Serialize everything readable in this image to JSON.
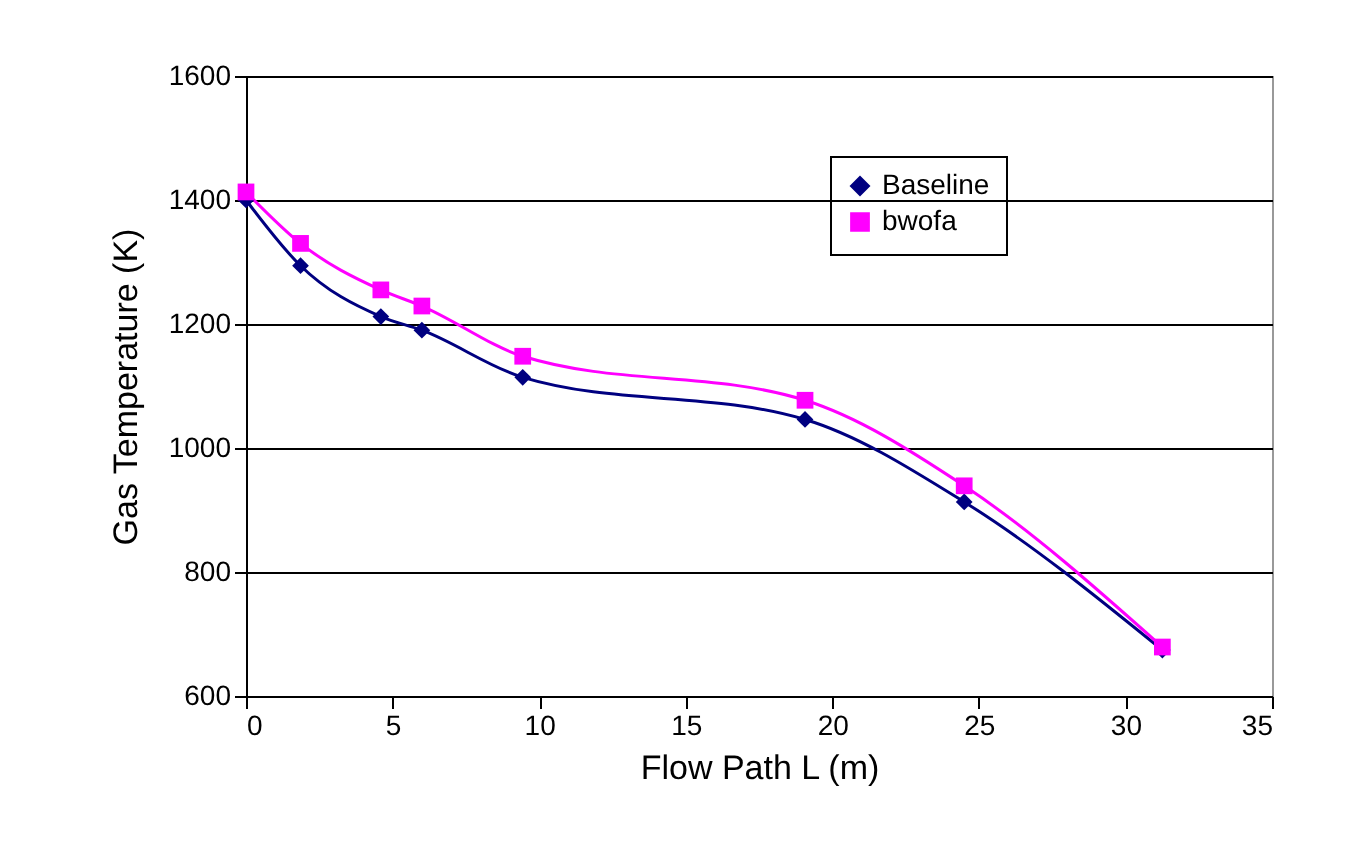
{
  "chart_data": {
    "type": "line",
    "xlabel": "Flow Path L (m)",
    "ylabel": "Gas Temperature (K)",
    "x": [
      0,
      1.86,
      4.6,
      6.0,
      9.44,
      19.07,
      24.5,
      31.26
    ],
    "series": [
      {
        "name": "Baseline",
        "color": "#000080",
        "marker": "diamond",
        "values": [
          1400,
          1294,
          1212,
          1190,
          1114,
          1046,
          913,
          674
        ]
      },
      {
        "name": "bwofa",
        "color": "#ff00ff",
        "marker": "square",
        "values": [
          1413,
          1330,
          1255,
          1229,
          1148,
          1077,
          939,
          679
        ]
      }
    ],
    "xlim": [
      0,
      35
    ],
    "xticks": [
      0,
      5,
      10,
      15,
      20,
      25,
      30,
      35
    ],
    "ylim": [
      600,
      1600
    ],
    "yticks": [
      600,
      800,
      1000,
      1200,
      1400,
      1600
    ],
    "grid": "y",
    "legend": "top right"
  }
}
